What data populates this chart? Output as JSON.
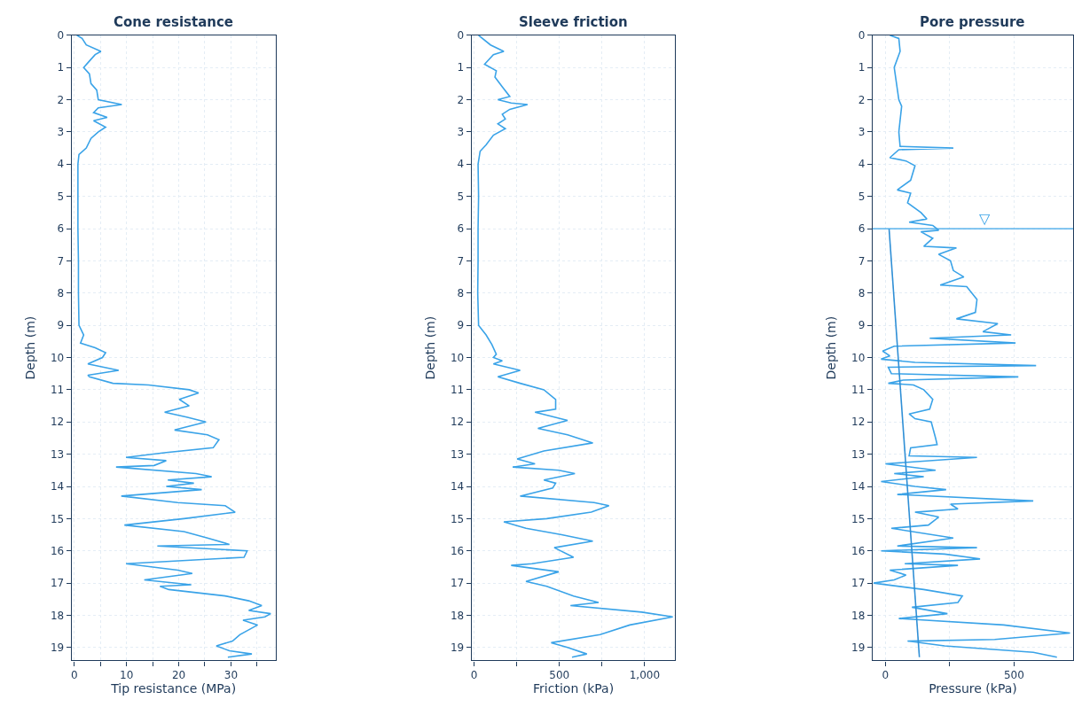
{
  "chart_data": [
    {
      "type": "line",
      "title": "Cone resistance",
      "xlabel": "Tip resistance (MPa)",
      "ylabel": "Depth (m)",
      "xlim": [
        -0.5,
        38.5
      ],
      "xticks": [
        0,
        {
          "value": 5,
          "label": null
        },
        10,
        {
          "value": 15,
          "label": null
        },
        20,
        {
          "value": 25,
          "label": null
        },
        30,
        {
          "value": 35,
          "label": null
        }
      ],
      "ylim": [
        19.4,
        0
      ],
      "yticks": [
        0,
        1,
        2,
        3,
        4,
        5,
        6,
        7,
        8,
        9,
        10,
        11,
        12,
        13,
        14,
        15,
        16,
        17,
        18,
        19
      ],
      "grid": true,
      "series": [
        {
          "color": "#3aa3e8",
          "x": [
            0.5,
            1.5,
            2.3,
            5.1,
            4,
            2.9,
            1.8,
            2.9,
            3.2,
            4.3,
            4.6,
            9.1,
            4.6,
            3.7,
            6.3,
            3.7,
            6,
            4.6,
            3.2,
            2.3,
            0.9,
            0.7,
            0.7,
            0.7,
            0.8,
            0.8,
            0.9,
            1.8,
            1.2,
            4,
            6,
            5.4,
            2.6,
            8.5,
            2.6,
            2.9,
            7.4,
            14.2,
            22,
            23.8,
            20.1,
            22,
            17.3,
            21.5,
            25.2,
            19.2,
            25.5,
            27.7,
            26.6,
            17.6,
            9.9,
            17.6,
            15.3,
            8,
            23.3,
            26.3,
            17.9,
            22.9,
            17.6,
            24.4,
            9,
            19.8,
            28.9,
            30.8,
            21,
            9.6,
            21,
            25.5,
            29.7,
            15.9,
            33.1,
            32.5,
            9.9,
            19.8,
            22.6,
            13.4,
            22.4,
            16.4,
            18.1,
            28.9,
            33.4,
            35.9,
            33.4,
            37.6,
            36.5,
            32.3,
            35.1,
            31.7,
            30.3,
            27.2,
            29.7,
            34,
            29.4
          ],
          "values": [
            0,
            0.1,
            0.3,
            0.5,
            0.6,
            0.8,
            1.0,
            1.2,
            1.5,
            1.7,
            2.0,
            2.15,
            2.25,
            2.4,
            2.55,
            2.65,
            2.85,
            3.0,
            3.2,
            3.5,
            3.7,
            4,
            5,
            6,
            7,
            8,
            9,
            9.3,
            9.55,
            9.7,
            9.85,
            10.0,
            10.2,
            10.4,
            10.55,
            10.6,
            10.8,
            10.85,
            11.0,
            11.1,
            11.3,
            11.5,
            11.7,
            11.85,
            12.0,
            12.25,
            12.4,
            12.55,
            12.8,
            12.95,
            13.1,
            13.2,
            13.35,
            13.4,
            13.6,
            13.7,
            13.8,
            13.9,
            14.0,
            14.1,
            14.3,
            14.5,
            14.6,
            14.8,
            15.0,
            15.2,
            15.4,
            15.6,
            15.8,
            15.85,
            16.0,
            16.2,
            16.4,
            16.6,
            16.7,
            16.9,
            17.05,
            17.1,
            17.2,
            17.4,
            17.55,
            17.7,
            17.85,
            17.95,
            18.05,
            18.15,
            18.3,
            18.6,
            18.8,
            18.95,
            19.1,
            19.2,
            19.3
          ]
        }
      ]
    },
    {
      "type": "line",
      "title": "Sleeve friction",
      "xlabel": "Friction (kPa)",
      "ylabel": "Depth (m)",
      "xlim": [
        -15,
        1180
      ],
      "xticks": [
        0,
        {
          "value": 250,
          "label": null
        },
        500,
        {
          "value": 750,
          "label": null
        },
        {
          "value": 1000,
          "label": "1,000"
        }
      ],
      "ylim": [
        19.4,
        0
      ],
      "yticks": [
        0,
        1,
        2,
        3,
        4,
        5,
        6,
        7,
        8,
        9,
        10,
        11,
        12,
        13,
        14,
        15,
        16,
        17,
        18,
        19
      ],
      "grid": true,
      "series": [
        {
          "color": "#3aa3e8",
          "x": [
            26,
            96,
            174,
            113,
            61,
            130,
            122,
            165,
            209,
            139,
            217,
            313,
            209,
            165,
            183,
            139,
            183,
            113,
            70,
            35,
            23,
            26,
            23,
            23,
            21,
            26,
            70,
            104,
            130,
            113,
            165,
            113,
            270,
            139,
            270,
            409,
            478,
            478,
            357,
            548,
            374,
            548,
            696,
            409,
            252,
            357,
            226,
            496,
            591,
            409,
            478,
            461,
            270,
            704,
            791,
            687,
            426,
            174,
            304,
            513,
            696,
            470,
            583,
            339,
            217,
            496,
            304,
            426,
            583,
            730,
            565,
            983,
            1165,
            913,
            739,
            452,
            548,
            661,
            574
          ],
          "values": [
            0,
            0.3,
            0.5,
            0.6,
            0.9,
            1.1,
            1.3,
            1.6,
            1.9,
            2.0,
            2.1,
            2.15,
            2.3,
            2.45,
            2.6,
            2.75,
            2.9,
            3.1,
            3.4,
            3.6,
            4,
            5,
            6,
            7,
            8,
            9,
            9.3,
            9.6,
            9.9,
            10.0,
            10.1,
            10.2,
            10.4,
            10.6,
            10.8,
            11.0,
            11.3,
            11.6,
            11.7,
            11.95,
            12.2,
            12.4,
            12.65,
            12.9,
            13.15,
            13.3,
            13.4,
            13.5,
            13.6,
            13.8,
            13.9,
            14.05,
            14.3,
            14.5,
            14.6,
            14.8,
            15.0,
            15.1,
            15.3,
            15.5,
            15.7,
            15.9,
            16.2,
            16.4,
            16.45,
            16.65,
            16.95,
            17.1,
            17.4,
            17.6,
            17.7,
            17.9,
            18.05,
            18.3,
            18.6,
            18.85,
            19.0,
            19.2,
            19.3
          ]
        }
      ]
    },
    {
      "type": "line",
      "title": "Pore pressure",
      "xlabel": "Pressure (kPa)",
      "ylabel": "Depth (m)",
      "xlim": [
        -50,
        730
      ],
      "xticks": [
        0,
        {
          "value": 250,
          "label": null
        },
        500
      ],
      "ylim": [
        19.4,
        0
      ],
      "yticks": [
        0,
        1,
        2,
        3,
        4,
        5,
        6,
        7,
        8,
        9,
        10,
        11,
        12,
        13,
        14,
        15,
        16,
        17,
        18,
        19
      ],
      "grid": true,
      "ref_lines": [
        {
          "axis": "y",
          "value": 6,
          "label": "▽",
          "color": "#3aa3e8"
        }
      ],
      "series": [
        {
          "color": "#3aa3e8",
          "x": [
            17,
            52,
            57,
            34,
            52,
            63,
            52,
            57,
            264,
            52,
            17,
            80,
            115,
            98,
            46,
            98,
            86,
            138,
            161,
            92,
            184,
            207,
            138,
            184,
            149,
            276,
            207,
            253,
            264,
            305,
            213,
            316,
            356,
            350,
            276,
            437,
            379,
            489,
            172,
            506,
            34,
            -11,
            17,
            -17,
            115,
            586,
            11,
            23,
            517,
            69,
            11,
            109,
            149,
            184,
            172,
            92,
            115,
            178,
            195,
            201,
            98,
            92,
            356,
            0,
            195,
            34,
            149,
            -17,
            115,
            236,
            46,
            575,
            253,
            282,
            115,
            207,
            167,
            23,
            264,
            46,
            356,
            -17,
            230,
            368,
            75,
            282,
            17,
            80,
            34,
            -46,
            149,
            299,
            282,
            103,
            241,
            52,
            460,
            718,
            425,
            86,
            230,
            575,
            667
          ],
          "values": [
            0,
            0.1,
            0.5,
            1.0,
            2.0,
            2.2,
            3.0,
            3.45,
            3.5,
            3.55,
            3.8,
            3.9,
            4.05,
            4.5,
            4.8,
            4.9,
            5.2,
            5.5,
            5.7,
            5.8,
            5.9,
            6.05,
            6.1,
            6.3,
            6.55,
            6.6,
            6.8,
            7.0,
            7.3,
            7.5,
            7.75,
            7.8,
            8.2,
            8.6,
            8.8,
            8.95,
            9.2,
            9.3,
            9.4,
            9.55,
            9.65,
            9.8,
            9.95,
            10.05,
            10.15,
            10.25,
            10.3,
            10.5,
            10.6,
            10.7,
            10.8,
            10.85,
            11.0,
            11.3,
            11.6,
            11.75,
            11.9,
            12.0,
            12.5,
            12.7,
            12.8,
            13.05,
            13.1,
            13.3,
            13.5,
            13.6,
            13.7,
            13.85,
            14.0,
            14.1,
            14.25,
            14.45,
            14.55,
            14.7,
            14.8,
            14.95,
            15.2,
            15.3,
            15.6,
            15.85,
            15.9,
            16.0,
            16.1,
            16.25,
            16.4,
            16.45,
            16.6,
            16.75,
            16.9,
            17.0,
            17.2,
            17.4,
            17.6,
            17.75,
            17.95,
            18.1,
            18.3,
            18.55,
            18.75,
            18.8,
            18.95,
            19.15,
            19.3
          ]
        },
        {
          "color": "#2f8fd6",
          "x": [
            14,
            132
          ],
          "values": [
            6,
            19.3
          ]
        }
      ]
    }
  ]
}
